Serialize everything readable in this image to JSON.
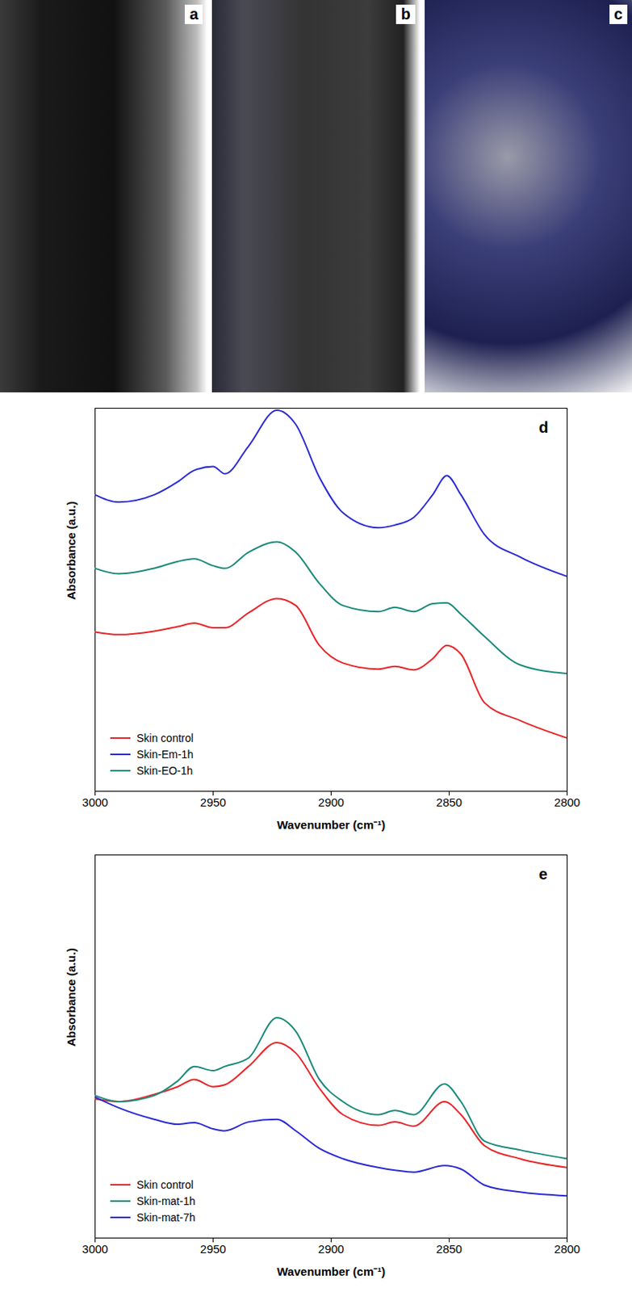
{
  "images": [
    {
      "label": "a"
    },
    {
      "label": "b"
    },
    {
      "label": "c"
    }
  ],
  "chart_data": [
    {
      "type": "line",
      "panel": "d",
      "xlabel": "Wavenumber (cm⁻¹)",
      "ylabel": "Absorbance (a.u.)",
      "x": [
        3000,
        2990,
        2975,
        2965,
        2958,
        2950,
        2945,
        2935,
        2923,
        2915,
        2905,
        2895,
        2880,
        2873,
        2865,
        2857,
        2851,
        2845,
        2835,
        2820,
        2800
      ],
      "series": [
        {
          "name": "Skin control",
          "color": "#e8262a",
          "values": [
            0.416,
            0.409,
            0.418,
            0.43,
            0.439,
            0.427,
            0.427,
            0.466,
            0.503,
            0.485,
            0.381,
            0.335,
            0.319,
            0.326,
            0.317,
            0.346,
            0.381,
            0.358,
            0.231,
            0.185,
            0.139
          ]
        },
        {
          "name": "Skin-Em-1h",
          "color": "#2b2bd6",
          "values": [
            0.774,
            0.755,
            0.774,
            0.808,
            0.838,
            0.848,
            0.829,
            0.901,
            0.995,
            0.958,
            0.82,
            0.727,
            0.688,
            0.695,
            0.715,
            0.774,
            0.824,
            0.774,
            0.67,
            0.612,
            0.561
          ]
        },
        {
          "name": "Skin-EO-1h",
          "color": "#1a8a7a",
          "values": [
            0.582,
            0.568,
            0.582,
            0.6,
            0.607,
            0.589,
            0.582,
            0.624,
            0.651,
            0.624,
            0.543,
            0.485,
            0.469,
            0.48,
            0.469,
            0.49,
            0.492,
            0.462,
            0.404,
            0.33,
            0.307
          ]
        }
      ],
      "xlim": [
        3000,
        2800
      ],
      "xticks": [
        3000,
        2950,
        2900,
        2850,
        2800
      ],
      "ylim": [
        0,
        1
      ],
      "yticks": [],
      "tick_labels": "x",
      "legend": "lower left"
    },
    {
      "type": "line",
      "panel": "e",
      "xlabel": "Wavenumber (cm⁻¹)",
      "ylabel": "Absorbance (a.u.)",
      "x": [
        3000,
        2990,
        2975,
        2965,
        2958,
        2950,
        2945,
        2935,
        2923,
        2915,
        2905,
        2895,
        2880,
        2873,
        2865,
        2852,
        2845,
        2835,
        2820,
        2800
      ],
      "series": [
        {
          "name": "Skin control",
          "color": "#e8262a",
          "values": [
            0.363,
            0.356,
            0.375,
            0.395,
            0.414,
            0.395,
            0.4,
            0.448,
            0.51,
            0.483,
            0.391,
            0.322,
            0.294,
            0.303,
            0.292,
            0.356,
            0.322,
            0.241,
            0.207,
            0.184
          ]
        },
        {
          "name": "Skin-mat-1h",
          "color": "#1a8a7a",
          "values": [
            0.372,
            0.356,
            0.372,
            0.41,
            0.448,
            0.437,
            0.448,
            0.47,
            0.575,
            0.54,
            0.414,
            0.356,
            0.322,
            0.333,
            0.322,
            0.402,
            0.356,
            0.253,
            0.23,
            0.207
          ]
        },
        {
          "name": "Skin-mat-7h",
          "color": "#2b2bd6",
          "values": [
            0.368,
            0.34,
            0.31,
            0.297,
            0.301,
            0.285,
            0.28,
            0.303,
            0.31,
            0.28,
            0.234,
            0.207,
            0.184,
            0.177,
            0.172,
            0.189,
            0.18,
            0.138,
            0.12,
            0.11
          ]
        }
      ],
      "xlim": [
        3000,
        2800
      ],
      "xticks": [
        3000,
        2950,
        2900,
        2850,
        2800
      ],
      "ylim": [
        0,
        1
      ],
      "yticks": [],
      "tick_labels": "x",
      "legend": "lower left"
    }
  ]
}
